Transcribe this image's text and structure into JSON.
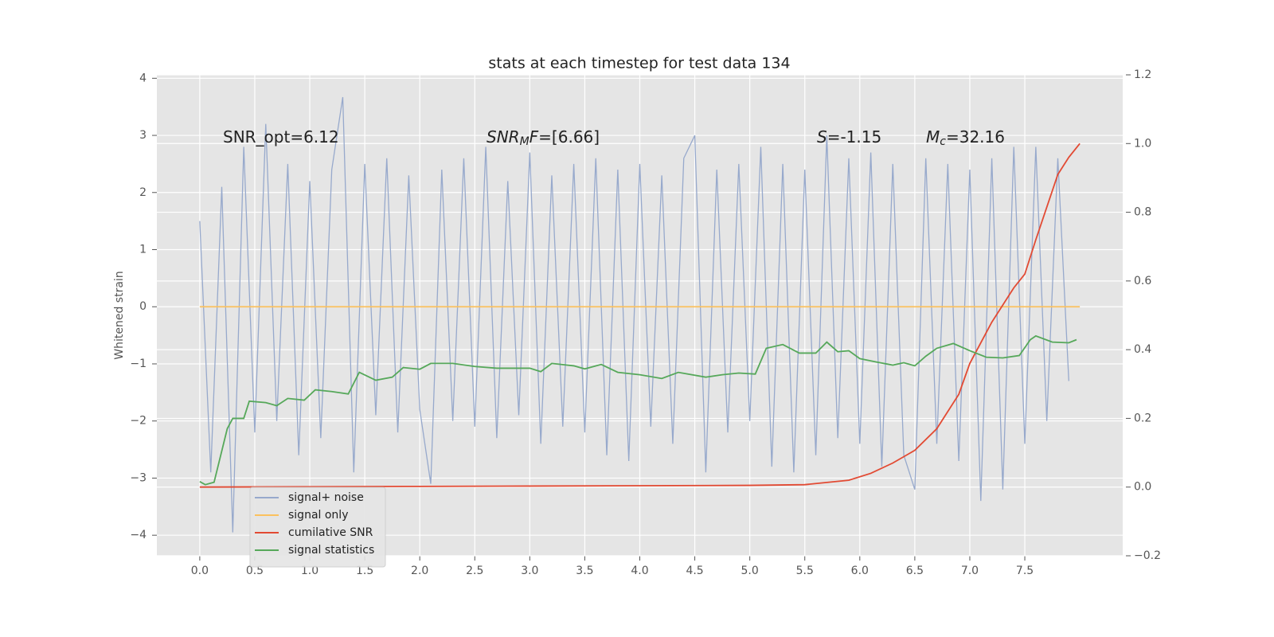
{
  "chart_data": {
    "type": "line",
    "title": "stats at each timestep for test data 134",
    "ylabel": "Whitened strain",
    "xlim": [
      -0.39,
      8.39
    ],
    "ylim": [
      -4.36,
      4.06
    ],
    "y2lim": [
      -0.2,
      1.2
    ],
    "grid": true,
    "legend": "lower left",
    "xticks": [
      {
        "value": 0,
        "label": "0.0"
      },
      0.5,
      {
        "value": 1,
        "label": "1.0"
      },
      1.5,
      {
        "value": 2,
        "label": "2.0"
      },
      2.5,
      {
        "value": 3,
        "label": "3.0"
      },
      3.5,
      {
        "value": 4,
        "label": "4.0"
      },
      4.5,
      {
        "value": 5,
        "label": "5.0"
      },
      5.5,
      {
        "value": 6,
        "label": "6.0"
      },
      6.5,
      {
        "value": 7,
        "label": "7.0"
      },
      7.5
    ],
    "yticks": [
      {
        "value": -4,
        "label": "−4"
      },
      {
        "value": -3,
        "label": "−3"
      },
      {
        "value": -2,
        "label": "−2"
      },
      {
        "value": -1,
        "label": "−1"
      },
      0,
      1,
      2,
      3,
      4
    ],
    "y2ticks": [
      {
        "value": -0.2,
        "label": "−0.2"
      },
      {
        "value": 0,
        "label": "0.0"
      },
      0.2,
      0.4,
      0.6,
      0.8,
      {
        "value": 1,
        "label": "1.0"
      },
      1.2
    ],
    "annotations": [
      {
        "parts": [
          {
            "text": "SNR_opt=6.12",
            "style": "normal"
          }
        ]
      },
      {
        "parts": [
          {
            "text": "SNR",
            "style": "italic"
          },
          {
            "text": "M",
            "style": "italic-sub"
          },
          {
            "text": "F",
            "style": "italic"
          },
          {
            "text": "=[6.66]",
            "style": "normal"
          }
        ]
      },
      {
        "parts": [
          {
            "text": "S",
            "style": "italic"
          },
          {
            "text": "=-1.15",
            "style": "normal"
          }
        ]
      },
      {
        "parts": [
          {
            "text": "M",
            "style": "italic"
          },
          {
            "text": "c",
            "style": "italic-sub"
          },
          {
            "text": "=32.16",
            "style": "normal"
          }
        ]
      }
    ],
    "series": [
      {
        "name": "signal+ noise",
        "color": "#97a9cc",
        "axis": "y",
        "x": [
          0.0,
          0.1,
          0.2,
          0.3,
          0.4,
          0.5,
          0.6,
          0.7,
          0.8,
          0.9,
          1.0,
          1.1,
          1.2,
          1.3,
          1.4,
          1.5,
          1.6,
          1.7,
          1.8,
          1.9,
          2.0,
          2.1,
          2.2,
          2.3,
          2.4,
          2.5,
          2.6,
          2.7,
          2.8,
          2.9,
          3.0,
          3.1,
          3.2,
          3.3,
          3.4,
          3.5,
          3.6,
          3.7,
          3.8,
          3.9,
          4.0,
          4.1,
          4.2,
          4.3,
          4.4,
          4.5,
          4.6,
          4.7,
          4.8,
          4.9,
          5.0,
          5.1,
          5.2,
          5.3,
          5.4,
          5.5,
          5.6,
          5.7,
          5.8,
          5.9,
          6.0,
          6.1,
          6.2,
          6.3,
          6.4,
          6.5,
          6.6,
          6.7,
          6.8,
          6.9,
          7.0,
          7.1,
          7.2,
          7.3,
          7.4,
          7.5,
          7.6,
          7.7,
          7.8,
          7.9
        ],
        "values": [
          1.5,
          -2.9,
          2.1,
          -3.95,
          2.8,
          -2.2,
          3.2,
          -2.0,
          2.5,
          -2.6,
          2.2,
          -2.3,
          2.4,
          3.67,
          -2.9,
          2.5,
          -1.9,
          2.6,
          -2.2,
          2.3,
          -1.8,
          -3.1,
          2.4,
          -2.0,
          2.6,
          -2.1,
          2.8,
          -2.3,
          2.2,
          -1.9,
          2.7,
          -2.4,
          2.3,
          -2.1,
          2.5,
          -2.2,
          2.6,
          -2.6,
          2.4,
          -2.7,
          2.5,
          -2.1,
          2.3,
          -2.4,
          2.6,
          3.0,
          -2.9,
          2.4,
          -2.2,
          2.5,
          -2.0,
          2.8,
          -2.8,
          2.5,
          -2.9,
          2.4,
          -2.6,
          3.0,
          -2.3,
          2.6,
          -2.4,
          2.7,
          -2.8,
          2.5,
          -2.6,
          -3.2,
          2.6,
          -2.4,
          2.5,
          -2.7,
          2.4,
          -3.4,
          2.6,
          -3.2,
          2.8,
          -2.4,
          2.8,
          -2.0,
          2.6,
          -1.3
        ]
      },
      {
        "name": "signal only",
        "color": "#fbc15e",
        "axis": "y",
        "x": [
          0.0,
          8.0
        ],
        "values": [
          0,
          0
        ]
      },
      {
        "name": "cumilative SNR",
        "color": "#e24a33",
        "axis": "y2",
        "x": [
          0.0,
          1.0,
          2.0,
          3.0,
          4.0,
          5.0,
          5.5,
          5.9,
          6.1,
          6.3,
          6.5,
          6.7,
          6.9,
          7.0,
          7.2,
          7.4,
          7.5,
          7.6,
          7.8,
          7.9,
          8.0
        ],
        "values": [
          0.0,
          0.001,
          0.002,
          0.003,
          0.004,
          0.005,
          0.007,
          0.02,
          0.04,
          0.07,
          0.107,
          0.17,
          0.27,
          0.36,
          0.48,
          0.58,
          0.62,
          0.72,
          0.91,
          0.96,
          1.0
        ]
      },
      {
        "name": "signal statistics",
        "color": "#56a85a",
        "axis": "y2",
        "x": [
          0.0,
          0.05,
          0.13,
          0.25,
          0.3,
          0.4,
          0.45,
          0.6,
          0.7,
          0.8,
          0.95,
          1.05,
          1.2,
          1.35,
          1.45,
          1.6,
          1.75,
          1.85,
          2.0,
          2.1,
          2.3,
          2.5,
          2.7,
          3.0,
          3.1,
          3.2,
          3.4,
          3.5,
          3.65,
          3.8,
          4.0,
          4.2,
          4.35,
          4.6,
          4.75,
          4.9,
          5.05,
          5.15,
          5.3,
          5.45,
          5.6,
          5.7,
          5.8,
          5.9,
          6.0,
          6.15,
          6.3,
          6.4,
          6.5,
          6.6,
          6.7,
          6.85,
          7.0,
          7.15,
          7.3,
          7.45,
          7.55,
          7.6,
          7.75,
          7.9,
          7.97
        ],
        "values": [
          0.016,
          0.007,
          0.014,
          0.17,
          0.2,
          0.2,
          0.25,
          0.246,
          0.237,
          0.258,
          0.253,
          0.283,
          0.278,
          0.271,
          0.334,
          0.311,
          0.32,
          0.348,
          0.343,
          0.36,
          0.36,
          0.351,
          0.346,
          0.346,
          0.336,
          0.36,
          0.353,
          0.344,
          0.357,
          0.334,
          0.327,
          0.316,
          0.334,
          0.32,
          0.327,
          0.332,
          0.329,
          0.404,
          0.415,
          0.39,
          0.39,
          0.422,
          0.394,
          0.397,
          0.374,
          0.364,
          0.355,
          0.362,
          0.353,
          0.381,
          0.404,
          0.418,
          0.397,
          0.378,
          0.376,
          0.383,
          0.429,
          0.44,
          0.422,
          0.42,
          0.429
        ]
      }
    ]
  }
}
